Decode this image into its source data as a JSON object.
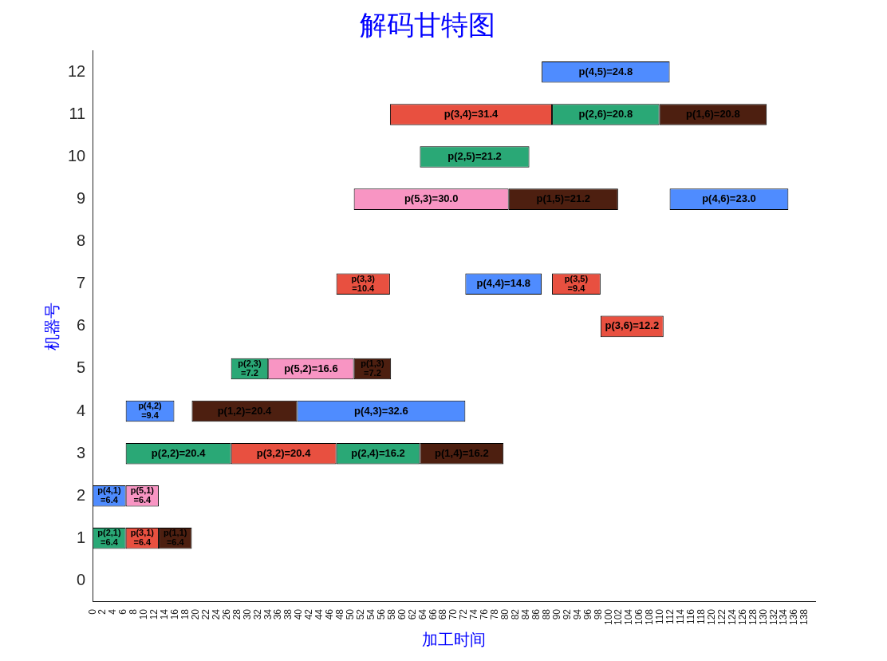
{
  "chart_data": {
    "type": "bar",
    "orientation": "horizontal",
    "title": "解码甘特图",
    "xlabel": "加工时间",
    "ylabel": "机器号",
    "categories": [
      "12",
      "11",
      "10",
      "9",
      "8",
      "7",
      "6",
      "5",
      "4",
      "3",
      "2",
      "1",
      "0"
    ],
    "xlim": [
      0,
      140
    ],
    "xticks": [
      0,
      2,
      4,
      6,
      8,
      10,
      12,
      14,
      16,
      18,
      20,
      22,
      24,
      26,
      28,
      30,
      32,
      34,
      36,
      38,
      40,
      42,
      44,
      46,
      48,
      50,
      52,
      54,
      56,
      58,
      60,
      62,
      64,
      66,
      68,
      70,
      72,
      74,
      76,
      78,
      80,
      82,
      84,
      86,
      88,
      90,
      92,
      94,
      96,
      98,
      100,
      102,
      104,
      106,
      108,
      110,
      112,
      114,
      116,
      118,
      120,
      122,
      124,
      126,
      128,
      130,
      132,
      134,
      136,
      138
    ],
    "grid": false,
    "legend": false,
    "series": [
      {
        "values": [
          24.8,
          31.4,
          21.2,
          30.0,
          null,
          10.4,
          12.2,
          7.2,
          9.4,
          20.4,
          6.4,
          6.4,
          null
        ],
        "base": [
          87.0,
          57.6,
          63.4,
          50.6,
          null,
          47.2,
          98.4,
          26.8,
          6.4,
          6.4,
          0,
          0,
          null
        ],
        "colors": [
          "#4f8cff",
          "#e85040",
          "#2aa876",
          "#f895c3",
          null,
          "#e85040",
          "#e85040",
          "#2aa876",
          "#4f8cff",
          "#2aa876",
          "#4f8cff",
          "#2aa876",
          null
        ],
        "value_labels": [
          "p(4,5)=24.8",
          "p(3,4)=31.4",
          "p(2,5)=21.2",
          "p(5,3)=30.0",
          null,
          "p(3,3)=10.4",
          "p(3,6)=12.2",
          "p(2,3)=7.2",
          "p(4,2)=9.4",
          "p(2,2)=20.4",
          "p(4,1)=6.4",
          "p(2,1)=6.4",
          null
        ]
      },
      {
        "values": [
          null,
          20.8,
          null,
          21.2,
          null,
          14.8,
          null,
          16.6,
          20.4,
          20.4,
          6.4,
          6.4,
          null
        ],
        "base": [
          null,
          89.0,
          null,
          80.6,
          null,
          72.2,
          null,
          34.0,
          19.2,
          26.8,
          6.4,
          6.4,
          null
        ],
        "colors": [
          null,
          "#2aa876",
          null,
          "#4d1f10",
          null,
          "#4f8cff",
          null,
          "#f895c3",
          "#4d1f10",
          "#e85040",
          "#f895c3",
          "#e85040",
          null
        ],
        "value_labels": [
          null,
          "p(2,6)=20.8",
          null,
          "p(1,5)=21.2",
          null,
          "p(4,4)=14.8",
          null,
          "p(5,2)=16.6",
          "p(1,2)=20.4",
          "p(3,2)=20.4",
          "p(5,1)=6.4",
          "p(3,1)=6.4",
          null
        ]
      },
      {
        "values": [
          null,
          20.8,
          null,
          23.0,
          null,
          9.4,
          null,
          7.2,
          32.6,
          16.2,
          null,
          6.4,
          null
        ],
        "base": [
          null,
          109.8,
          null,
          111.8,
          null,
          89.0,
          null,
          50.6,
          39.6,
          47.2,
          null,
          12.8,
          null
        ],
        "colors": [
          null,
          "#4d1f10",
          null,
          "#4f8cff",
          null,
          "#e85040",
          null,
          "#4d1f10",
          "#4f8cff",
          "#2aa876",
          null,
          "#4d1f10",
          null
        ],
        "value_labels": [
          null,
          "p(1,6)=20.8",
          null,
          "p(4,6)=23.0",
          null,
          "p(3,5)=9.4",
          null,
          "p(1,3)=7.2",
          "p(4,3)=32.6",
          "p(2,4)=16.2",
          null,
          "p(1,1)=6.4",
          null
        ]
      },
      {
        "values": [
          null,
          null,
          null,
          null,
          null,
          null,
          null,
          null,
          null,
          16.2,
          null,
          null,
          null
        ],
        "base": [
          null,
          null,
          null,
          null,
          null,
          null,
          null,
          null,
          null,
          63.4,
          null,
          null,
          null
        ],
        "colors": [
          null,
          null,
          null,
          null,
          null,
          null,
          null,
          null,
          null,
          "#4d1f10",
          null,
          null,
          null
        ],
        "value_labels": [
          null,
          null,
          null,
          null,
          null,
          null,
          null,
          null,
          null,
          "p(1,4)=16.2",
          null,
          null,
          null
        ]
      }
    ]
  }
}
